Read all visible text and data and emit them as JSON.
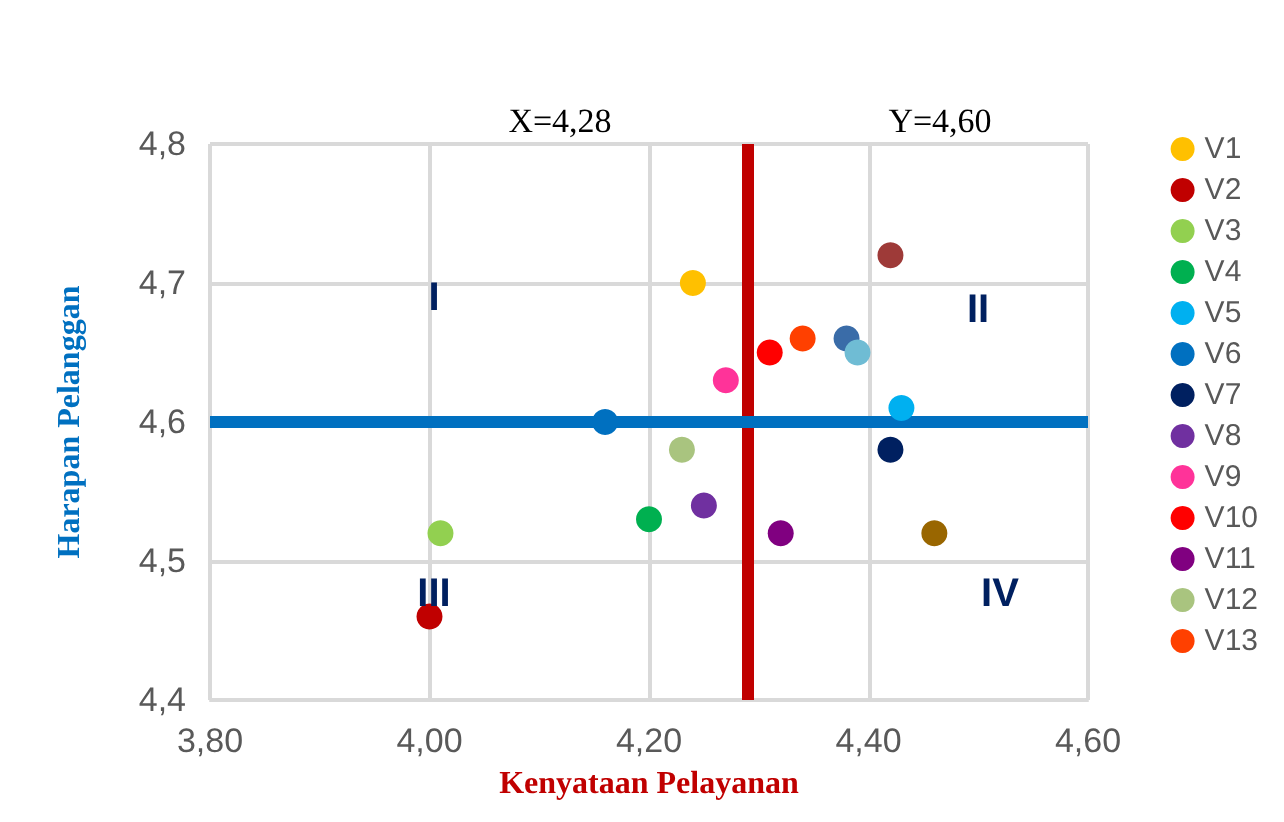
{
  "chart_data": {
    "type": "scatter",
    "xlabel": "Kenyataan Pelayanan",
    "ylabel": "Harapan Pelanggan",
    "annotations": [
      "X=4,28",
      "Y=4,60",
      "I",
      "II",
      "III",
      "IV"
    ],
    "xlim": [
      3.8,
      4.6
    ],
    "xticks": [
      {
        "value": 3.8,
        "label": "3,80"
      },
      {
        "value": 4.0,
        "label": "4,00"
      },
      {
        "value": 4.2,
        "label": "4,20"
      },
      {
        "value": 4.4,
        "label": "4,40"
      },
      {
        "value": 4.6,
        "label": "4,60"
      }
    ],
    "ylim": [
      4.4,
      4.8
    ],
    "yticks": [
      {
        "value": 4.4,
        "label": "4,4"
      },
      {
        "value": 4.5,
        "label": "4,5"
      },
      {
        "value": 4.6,
        "label": "4,6"
      },
      {
        "value": 4.7,
        "label": "4,7"
      },
      {
        "value": 4.8,
        "label": "4,8"
      }
    ],
    "grid": true,
    "legend": "right",
    "marker": "circle",
    "ref_lines": [
      {
        "axis": "x",
        "value": 4.29,
        "color": "#c00000"
      },
      {
        "axis": "y",
        "value": 4.6,
        "color": "#0070c0"
      }
    ],
    "series": [
      {
        "name": "V1",
        "color": "#ffc000",
        "x": [
          4.24
        ],
        "values": [
          4.7
        ]
      },
      {
        "name": "V2",
        "color": "#c00000",
        "x": [
          4.0
        ],
        "values": [
          4.46
        ]
      },
      {
        "name": "V3",
        "color": "#92d050",
        "x": [
          4.01
        ],
        "values": [
          4.52
        ]
      },
      {
        "name": "V4",
        "color": "#00b050",
        "x": [
          4.2
        ],
        "values": [
          4.53
        ]
      },
      {
        "name": "V5",
        "color": "#00b0f0",
        "x": [
          4.43
        ],
        "values": [
          4.61
        ]
      },
      {
        "name": "V6",
        "color": "#0070c0",
        "x": [
          4.16
        ],
        "values": [
          4.6
        ]
      },
      {
        "name": "V7",
        "color": "#002060",
        "x": [
          4.42
        ],
        "values": [
          4.58
        ]
      },
      {
        "name": "V8",
        "color": "#7030a0",
        "x": [
          4.25
        ],
        "values": [
          4.54
        ]
      },
      {
        "name": "V9",
        "color": "#ff3399",
        "x": [
          4.27
        ],
        "values": [
          4.63
        ]
      },
      {
        "name": "V10",
        "color": "#ff0000",
        "x": [
          4.31
        ],
        "values": [
          4.65
        ]
      },
      {
        "name": "V11",
        "color": "#800080",
        "x": [
          4.32
        ],
        "values": [
          4.52
        ]
      },
      {
        "name": "V12",
        "color": "#a9c47f",
        "x": [
          4.23
        ],
        "values": [
          4.58
        ]
      },
      {
        "name": "V13",
        "color": "#ff4000",
        "x": [
          4.34
        ],
        "values": [
          4.66
        ]
      },
      {
        "color": "#9e3a38",
        "x": [
          4.42
        ],
        "values": [
          4.72
        ]
      },
      {
        "color": "#3a6ca8",
        "x": [
          4.38
        ],
        "values": [
          4.66
        ]
      },
      {
        "color": "#6fbcd4",
        "x": [
          4.39
        ],
        "values": [
          4.65
        ]
      },
      {
        "color": "#996600",
        "x": [
          4.46
        ],
        "values": [
          4.52
        ]
      }
    ]
  }
}
